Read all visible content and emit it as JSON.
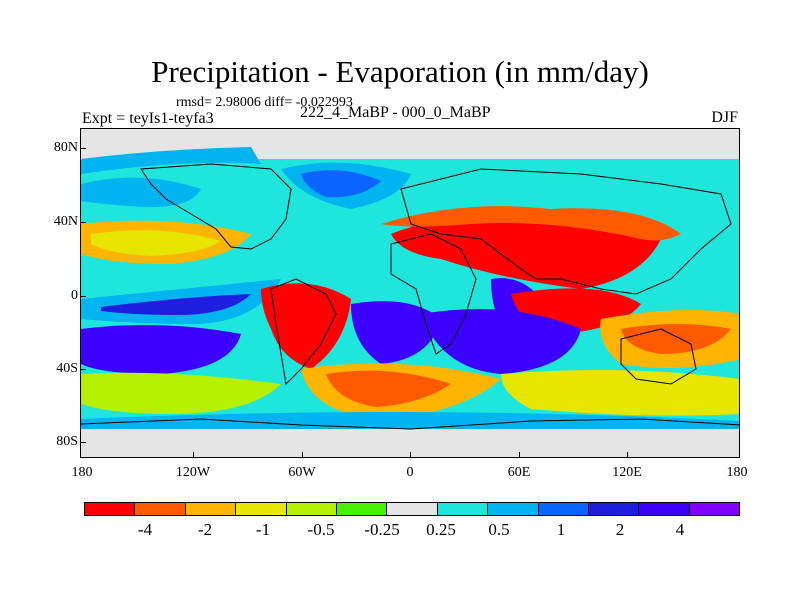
{
  "title": "Precipitation - Evaporation (in mm/day)",
  "stats": "rmsd= 2.98006 diff= -0.022993",
  "expt": "Expt = teyIs1-teyfa3",
  "period": "222_4_MaBP - 000_0_MaBP",
  "season": "DJF",
  "map": {
    "projection": "cylindrical-equidistant",
    "lat_ticks": [
      "80N",
      "40N",
      "0",
      "40S",
      "80S"
    ],
    "lon_ticks": [
      "180",
      "120W",
      "60W",
      "0",
      "60E",
      "120E",
      "180"
    ]
  },
  "colorbar": {
    "colors": [
      "#ff0000",
      "#ff5a00",
      "#ffb400",
      "#e6e600",
      "#b4f000",
      "#46f000",
      "#e5e5e5",
      "#1ee6dc",
      "#00b4f0",
      "#0a64ff",
      "#1e1ee1",
      "#3c00ff",
      "#8200ff"
    ],
    "labels": [
      "-4",
      "-2",
      "-1",
      "-0.5",
      "-0.25",
      "0.25",
      "0.5",
      "1",
      "2",
      "4"
    ]
  }
}
